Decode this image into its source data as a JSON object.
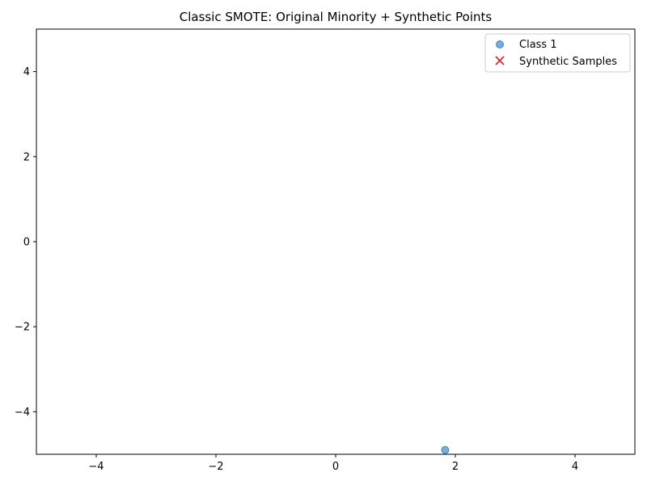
{
  "chart_data": {
    "type": "scatter",
    "title": "Classic SMOTE: Original Minority + Synthetic Points",
    "xlabel": "",
    "ylabel": "",
    "xlim": [
      -5,
      5
    ],
    "ylim": [
      -5,
      5
    ],
    "x_ticks": [
      -4,
      -2,
      0,
      2,
      4
    ],
    "y_ticks": [
      -4,
      -2,
      0,
      2,
      4
    ],
    "grid": false,
    "legend_position": "top-right",
    "series": [
      {
        "name": "Class 1",
        "marker": "circle",
        "color": "#1f77b4",
        "points": [
          {
            "x": 1.83,
            "y": -4.9
          }
        ]
      },
      {
        "name": "Synthetic Samples",
        "marker": "x",
        "color": "#d62728",
        "points": []
      }
    ]
  }
}
